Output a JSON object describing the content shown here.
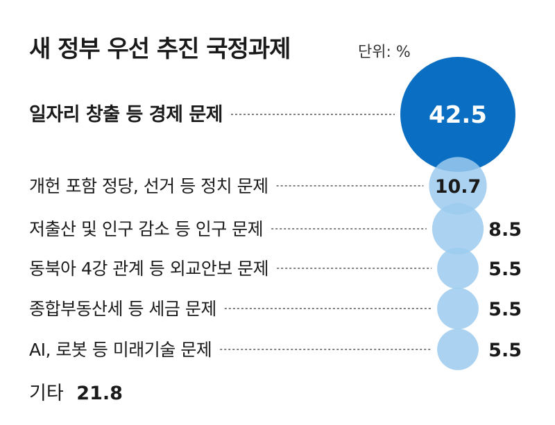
{
  "chart_data": {
    "type": "bubble",
    "title": "새 정부 우선 추진 국정과제",
    "unit": "단위: %",
    "categories": [
      "일자리 창출 등 경제 문제",
      "개헌 포함 정당, 선거 등 정치 문제",
      "저출산 및 인구 감소 등 인구 문제",
      "동북아 4강 관계 등 외교안보 문제",
      "종합부동산세 등 세금 문제",
      "AI, 로봇 등 미래기술 문제"
    ],
    "values": [
      42.5,
      10.7,
      8.5,
      5.5,
      5.5,
      5.5
    ],
    "value_labels": [
      "42.5",
      "10.7",
      "8.5",
      "5.5",
      "5.5",
      "5.5"
    ],
    "other": {
      "label": "기타",
      "value": 21.8,
      "value_label": "21.8"
    },
    "colors": {
      "highlight": "#0a6fc2",
      "bubble": "#9ccbef",
      "text_dark": "#1a1a1a",
      "text_light": "#ffffff"
    }
  }
}
